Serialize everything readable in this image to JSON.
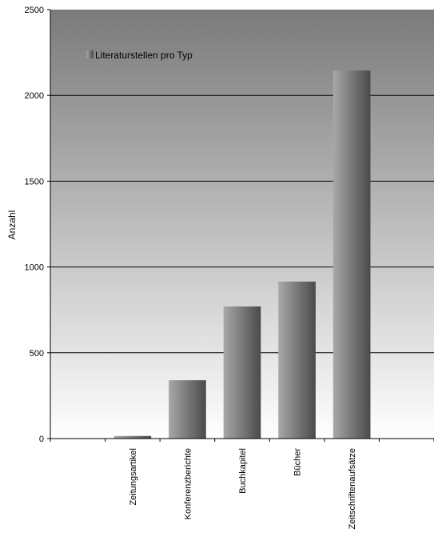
{
  "chart_data": {
    "type": "bar",
    "title": "",
    "xlabel": "",
    "ylabel": "Anzahl",
    "ylim": [
      0,
      2500
    ],
    "yticks": [
      0,
      500,
      1000,
      1500,
      2000,
      2500
    ],
    "grid": true,
    "legend_position": "top-left",
    "categories": [
      "",
      "Zeitungsartikel",
      "Konferenzberichte",
      "Buchkapitel",
      "Bücher",
      "Zeitschriftenaufsätze",
      ""
    ],
    "series": [
      {
        "name": "Literaturstellen pro Typ",
        "values": [
          0,
          15,
          340,
          770,
          915,
          2145,
          0
        ]
      }
    ],
    "colors": {
      "plot_bg_top": "#7a7a7a",
      "plot_bg_bottom": "#ffffff",
      "bar_light": "#a8a8a8",
      "bar_dark": "#4a4a4a",
      "gridline": "#000000"
    }
  }
}
